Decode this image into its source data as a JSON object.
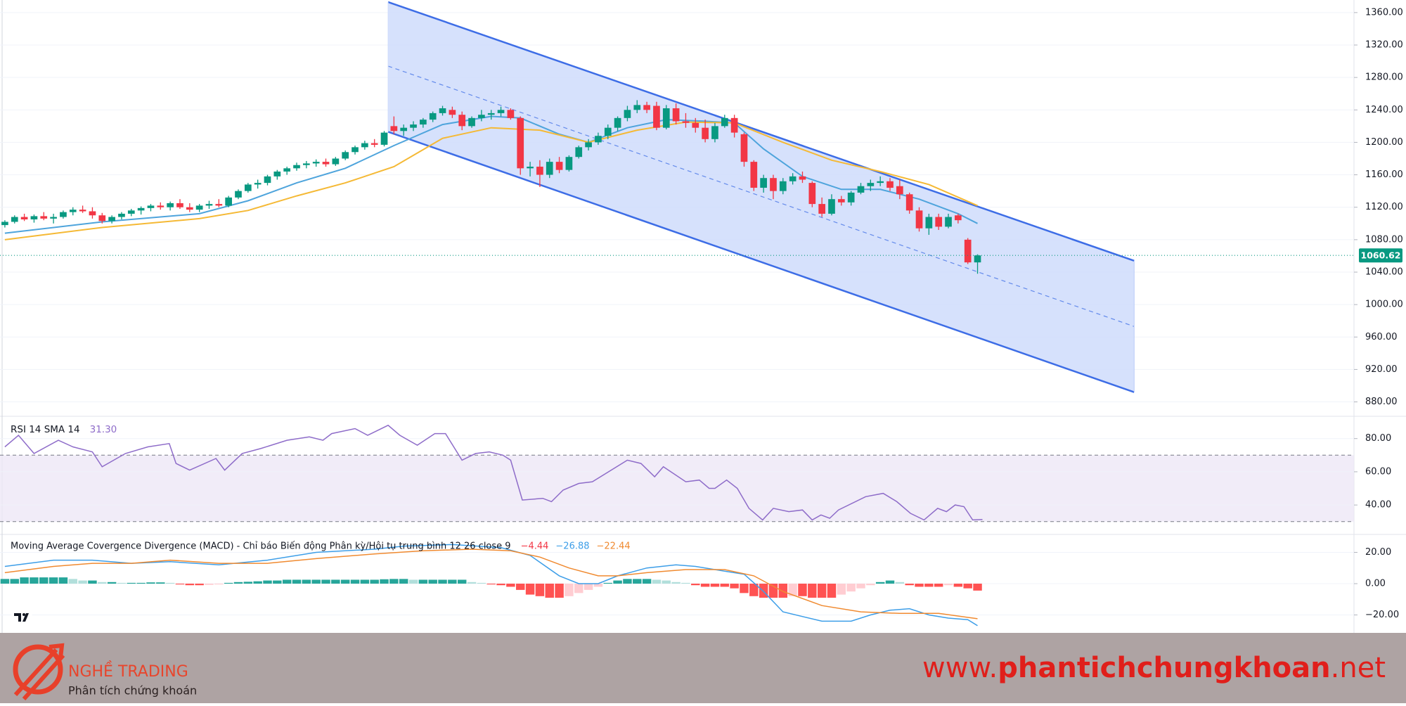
{
  "chart_data": [
    {
      "type": "candlestick",
      "xlim": [
        -0.5,
        138.7
      ],
      "ylim": [
        864,
        1375.5
      ],
      "grid": true,
      "up_color": "#089981",
      "down_color": "#f23645",
      "yticks": [
        {
          "value": 1360,
          "label": "1360.00"
        },
        {
          "value": 1320,
          "label": "1320.00"
        },
        {
          "value": 1280,
          "label": "1280.00"
        },
        {
          "value": 1240,
          "label": "1240.00"
        },
        {
          "value": 1200,
          "label": "1200.00"
        },
        {
          "value": 1160,
          "label": "1160.00"
        },
        {
          "value": 1120,
          "label": "1120.00"
        },
        {
          "value": 1080,
          "label": "1080.00"
        },
        {
          "value": 1040,
          "label": "1040.00"
        },
        {
          "value": 1000,
          "label": "1000.00"
        },
        {
          "value": 960,
          "label": "960.00"
        },
        {
          "value": 920,
          "label": "920.00"
        },
        {
          "value": 880,
          "label": "880.00"
        }
      ],
      "candles": [
        [
          1098,
          1104,
          1095,
          1102
        ],
        [
          1102,
          1110,
          1100,
          1108
        ],
        [
          1108,
          1112,
          1103,
          1105
        ],
        [
          1105,
          1111,
          1101,
          1109
        ],
        [
          1109,
          1114,
          1104,
          1106
        ],
        [
          1106,
          1112,
          1100,
          1108
        ],
        [
          1108,
          1116,
          1106,
          1114
        ],
        [
          1114,
          1120,
          1110,
          1117
        ],
        [
          1117,
          1122,
          1113,
          1115
        ],
        [
          1115,
          1120,
          1106,
          1110
        ],
        [
          1110,
          1113,
          1100,
          1103
        ],
        [
          1103,
          1110,
          1100,
          1108
        ],
        [
          1108,
          1114,
          1105,
          1112
        ],
        [
          1112,
          1118,
          1109,
          1116
        ],
        [
          1116,
          1121,
          1111,
          1119
        ],
        [
          1119,
          1124,
          1115,
          1122
        ],
        [
          1122,
          1126,
          1117,
          1120
        ],
        [
          1120,
          1127,
          1116,
          1125
        ],
        [
          1125,
          1130,
          1118,
          1120
        ],
        [
          1120,
          1125,
          1114,
          1117
        ],
        [
          1117,
          1124,
          1114,
          1122
        ],
        [
          1122,
          1128,
          1118,
          1124
        ],
        [
          1124,
          1130,
          1120,
          1122
        ],
        [
          1122,
          1134,
          1120,
          1132
        ],
        [
          1132,
          1142,
          1130,
          1140
        ],
        [
          1140,
          1150,
          1138,
          1148
        ],
        [
          1148,
          1154,
          1143,
          1150
        ],
        [
          1150,
          1160,
          1147,
          1158
        ],
        [
          1158,
          1166,
          1154,
          1164
        ],
        [
          1164,
          1170,
          1160,
          1168
        ],
        [
          1168,
          1175,
          1165,
          1172
        ],
        [
          1172,
          1177,
          1168,
          1174
        ],
        [
          1174,
          1179,
          1170,
          1176
        ],
        [
          1176,
          1180,
          1170,
          1173
        ],
        [
          1173,
          1182,
          1171,
          1180
        ],
        [
          1180,
          1190,
          1178,
          1188
        ],
        [
          1188,
          1196,
          1185,
          1194
        ],
        [
          1194,
          1202,
          1191,
          1199
        ],
        [
          1199,
          1204,
          1194,
          1197
        ],
        [
          1197,
          1214,
          1195,
          1212
        ],
        [
          1220,
          1232,
          1210,
          1214
        ],
        [
          1214,
          1222,
          1208,
          1218
        ],
        [
          1218,
          1226,
          1214,
          1222
        ],
        [
          1222,
          1230,
          1218,
          1228
        ],
        [
          1228,
          1238,
          1225,
          1236
        ],
        [
          1236,
          1245,
          1233,
          1242
        ],
        [
          1240,
          1244,
          1230,
          1234
        ],
        [
          1234,
          1238,
          1215,
          1220
        ],
        [
          1220,
          1232,
          1218,
          1230
        ],
        [
          1230,
          1240,
          1226,
          1234
        ],
        [
          1234,
          1240,
          1228,
          1236
        ],
        [
          1236,
          1244,
          1232,
          1240
        ],
        [
          1240,
          1242,
          1228,
          1230
        ],
        [
          1230,
          1232,
          1160,
          1168
        ],
        [
          1168,
          1176,
          1158,
          1170
        ],
        [
          1170,
          1178,
          1145,
          1160
        ],
        [
          1160,
          1180,
          1156,
          1176
        ],
        [
          1176,
          1182,
          1162,
          1166
        ],
        [
          1166,
          1184,
          1164,
          1182
        ],
        [
          1182,
          1196,
          1180,
          1194
        ],
        [
          1194,
          1204,
          1190,
          1200
        ],
        [
          1200,
          1212,
          1197,
          1208
        ],
        [
          1208,
          1222,
          1204,
          1218
        ],
        [
          1218,
          1232,
          1214,
          1230
        ],
        [
          1230,
          1245,
          1226,
          1240
        ],
        [
          1240,
          1252,
          1236,
          1246
        ],
        [
          1246,
          1250,
          1236,
          1240
        ],
        [
          1245,
          1250,
          1215,
          1218
        ],
        [
          1218,
          1246,
          1216,
          1242
        ],
        [
          1242,
          1248,
          1222,
          1226
        ],
        [
          1226,
          1236,
          1218,
          1224
        ],
        [
          1224,
          1230,
          1212,
          1218
        ],
        [
          1218,
          1228,
          1200,
          1204
        ],
        [
          1204,
          1224,
          1200,
          1220
        ],
        [
          1220,
          1234,
          1218,
          1230
        ],
        [
          1230,
          1234,
          1206,
          1212
        ],
        [
          1210,
          1212,
          1170,
          1176
        ],
        [
          1176,
          1178,
          1140,
          1144
        ],
        [
          1144,
          1160,
          1138,
          1156
        ],
        [
          1156,
          1160,
          1130,
          1140
        ],
        [
          1140,
          1156,
          1136,
          1152
        ],
        [
          1152,
          1162,
          1148,
          1158
        ],
        [
          1158,
          1164,
          1150,
          1154
        ],
        [
          1150,
          1152,
          1120,
          1124
        ],
        [
          1124,
          1132,
          1108,
          1112
        ],
        [
          1112,
          1136,
          1110,
          1130
        ],
        [
          1130,
          1134,
          1122,
          1126
        ],
        [
          1126,
          1140,
          1122,
          1138
        ],
        [
          1138,
          1150,
          1136,
          1146
        ],
        [
          1146,
          1154,
          1140,
          1150
        ],
        [
          1150,
          1158,
          1146,
          1152
        ],
        [
          1152,
          1156,
          1140,
          1144
        ],
        [
          1146,
          1154,
          1130,
          1136
        ],
        [
          1136,
          1138,
          1112,
          1116
        ],
        [
          1116,
          1120,
          1090,
          1094
        ],
        [
          1094,
          1112,
          1086,
          1108
        ],
        [
          1108,
          1112,
          1092,
          1096
        ],
        [
          1096,
          1112,
          1094,
          1108
        ],
        [
          1110,
          1112,
          1100,
          1104
        ],
        [
          1080,
          1082,
          1050,
          1052
        ],
        [
          1052,
          1062,
          1038,
          1060.62
        ]
      ],
      "moving_averages": [
        {
          "color": "#4ea4dc",
          "x": [
            0,
            10,
            20,
            25,
            30,
            35,
            40,
            45,
            50,
            53,
            57,
            60,
            64,
            68,
            72,
            75,
            78,
            82,
            86,
            90,
            94,
            98,
            100
          ],
          "values": [
            1088,
            1102,
            1112,
            1128,
            1150,
            1168,
            1196,
            1222,
            1232,
            1230,
            1210,
            1200,
            1218,
            1228,
            1226,
            1224,
            1192,
            1158,
            1142,
            1142,
            1130,
            1112,
            1100
          ]
        },
        {
          "color": "#f5b935",
          "x": [
            0,
            10,
            20,
            25,
            30,
            35,
            40,
            45,
            50,
            55,
            60,
            65,
            70,
            75,
            80,
            85,
            90,
            95,
            100
          ],
          "values": [
            1080,
            1095,
            1106,
            1116,
            1134,
            1150,
            1170,
            1205,
            1218,
            1215,
            1200,
            1215,
            1225,
            1224,
            1200,
            1178,
            1164,
            1148,
            1122
          ]
        }
      ],
      "channel": {
        "x": [
          39.4,
          116.1
        ],
        "upper": [
          1373,
          1054
        ],
        "middle": [
          1294,
          973
        ],
        "lower": [
          1213,
          892
        ],
        "color": "#3d6de6",
        "fill": "#cfdcfb"
      },
      "last_price": {
        "value": 1060.62,
        "label": "1060.62",
        "color": "#089981"
      }
    },
    {
      "type": "line",
      "title": "RSI 14 SMA 14",
      "ylim": [
        22.7,
        93
      ],
      "grid": true,
      "yticks": [
        {
          "value": 80,
          "label": "80.00"
        },
        {
          "value": 60,
          "label": "60.00"
        },
        {
          "value": 40,
          "label": "40.00"
        }
      ],
      "bands": [
        70,
        30
      ],
      "band_color": "#ede7f6",
      "series": [
        {
          "color": "#8e6cc9",
          "value_label": "31.30",
          "x": [
            0,
            1.4,
            3,
            5.5,
            7,
            9,
            10,
            12.4,
            14.7,
            16.9,
            17.6,
            19,
            21.7,
            22.6,
            24.4,
            26.3,
            29,
            31.3,
            32.7,
            33.6,
            36,
            37.3,
            39.4,
            40.6,
            42.4,
            44.2,
            45.3,
            47,
            48.4,
            49.8,
            51.2,
            52,
            53.2,
            55.3,
            56.2,
            57.4,
            59,
            60.4,
            64,
            65.4,
            66.8,
            67.7,
            70,
            71.4,
            72.4,
            73,
            74.2,
            75.3,
            76.5,
            77.9,
            79,
            80.6,
            82,
            83,
            83.9,
            84.8,
            85.7,
            88.5,
            90.3,
            91.7,
            93.1,
            94.5,
            95.9,
            96.8,
            97.7,
            98.6,
            99.5,
            100.5
          ],
          "values": [
            75,
            82,
            71,
            79,
            75,
            72,
            63,
            71,
            75,
            77,
            65,
            61,
            68,
            61,
            71,
            74,
            79,
            81,
            79,
            83,
            86,
            82,
            88,
            82,
            76,
            83,
            83,
            67,
            71,
            72,
            70,
            67,
            43,
            44,
            42,
            49,
            53,
            54,
            67,
            65,
            57,
            63,
            54,
            55,
            50,
            50,
            55,
            50,
            38,
            31,
            38,
            36,
            37,
            31,
            34,
            32,
            37,
            45,
            47,
            42,
            35,
            31,
            38,
            36,
            40,
            39,
            31,
            31.3
          ]
        }
      ]
    },
    {
      "type": "macd",
      "title": "Moving Average Covergence Divergence (MACD) - Chỉ báo Biến động Phân kỳ/Hội tụ trung bình 12 26 close 9",
      "ylim": [
        -31,
        31
      ],
      "grid": true,
      "yticks": [
        {
          "value": 20,
          "label": "20.00"
        },
        {
          "value": 0,
          "label": "0.00"
        },
        {
          "value": -20,
          "label": "−20.00"
        }
      ],
      "histogram": {
        "value_label": "−4.44",
        "label_color": "#f23645",
        "colors": [
          "#26a69a",
          "#b2dfdb",
          "#ff5252",
          "#ffcdd2"
        ],
        "values": [
          3,
          3,
          4,
          4,
          4,
          4,
          4,
          3,
          2,
          2,
          1,
          1,
          0.5,
          0.5,
          0.5,
          0.8,
          0.8,
          0.5,
          -0.5,
          -1,
          -1,
          -0.8,
          -0.5,
          0.5,
          1,
          1.2,
          1.5,
          2,
          2,
          2.5,
          2.5,
          2.5,
          2.5,
          2.5,
          2.5,
          2.5,
          2.5,
          2.5,
          2.5,
          2.8,
          3,
          3,
          2.5,
          2.5,
          2.5,
          2.5,
          2.5,
          2.5,
          1,
          0.5,
          -0.5,
          -1,
          -2,
          -4,
          -7,
          -8,
          -9,
          -9,
          -8,
          -6,
          -4,
          -2,
          0.5,
          2,
          3,
          3,
          3,
          2.5,
          2,
          1,
          0.5,
          -1,
          -2,
          -2,
          -2,
          -3,
          -6,
          -8,
          -9,
          -9,
          -9,
          -8,
          -8,
          -9,
          -9,
          -9,
          -7,
          -5,
          -3,
          -1,
          1,
          2,
          1,
          -1,
          -2,
          -2,
          -2,
          -1,
          -2,
          -3,
          -4.44
        ]
      },
      "series": [
        {
          "color": "#3d9ee8",
          "value_label": "−26.88",
          "x": [
            0,
            5,
            9,
            13,
            17,
            22,
            27,
            32,
            38,
            41,
            46,
            51,
            54,
            57,
            59,
            61,
            63,
            66,
            69,
            71,
            74,
            76,
            78,
            80,
            84,
            87,
            89,
            91,
            93,
            95,
            97,
            99,
            100
          ],
          "values": [
            11,
            15,
            15,
            13,
            14,
            12,
            15,
            20,
            22,
            24,
            25,
            23,
            18,
            5,
            0,
            0,
            5,
            10,
            12,
            11,
            8,
            6,
            -5,
            -18,
            -24,
            -24,
            -20,
            -17,
            -16,
            -20,
            -22,
            -23,
            -26.88
          ]
        },
        {
          "color": "#f08a30",
          "value_label": "−22.44",
          "x": [
            0,
            5,
            9,
            13,
            17,
            22,
            27,
            32,
            38,
            43,
            48,
            52,
            55,
            58,
            61,
            63,
            66,
            70,
            74,
            77,
            80,
            84,
            88,
            92,
            96,
            100
          ],
          "values": [
            7,
            11,
            13,
            13,
            15,
            13,
            13,
            16,
            19,
            21,
            22,
            21,
            17,
            10,
            5,
            5,
            7,
            9,
            9,
            5,
            -5,
            -14,
            -18,
            -19,
            -19,
            -22.44
          ]
        }
      ]
    }
  ],
  "footer": {
    "brand": "NGHỀ TRADING",
    "tagline": "Phân tích chứng khoán",
    "website": [
      "www.",
      "phantichchungkhoan",
      ".net"
    ]
  }
}
